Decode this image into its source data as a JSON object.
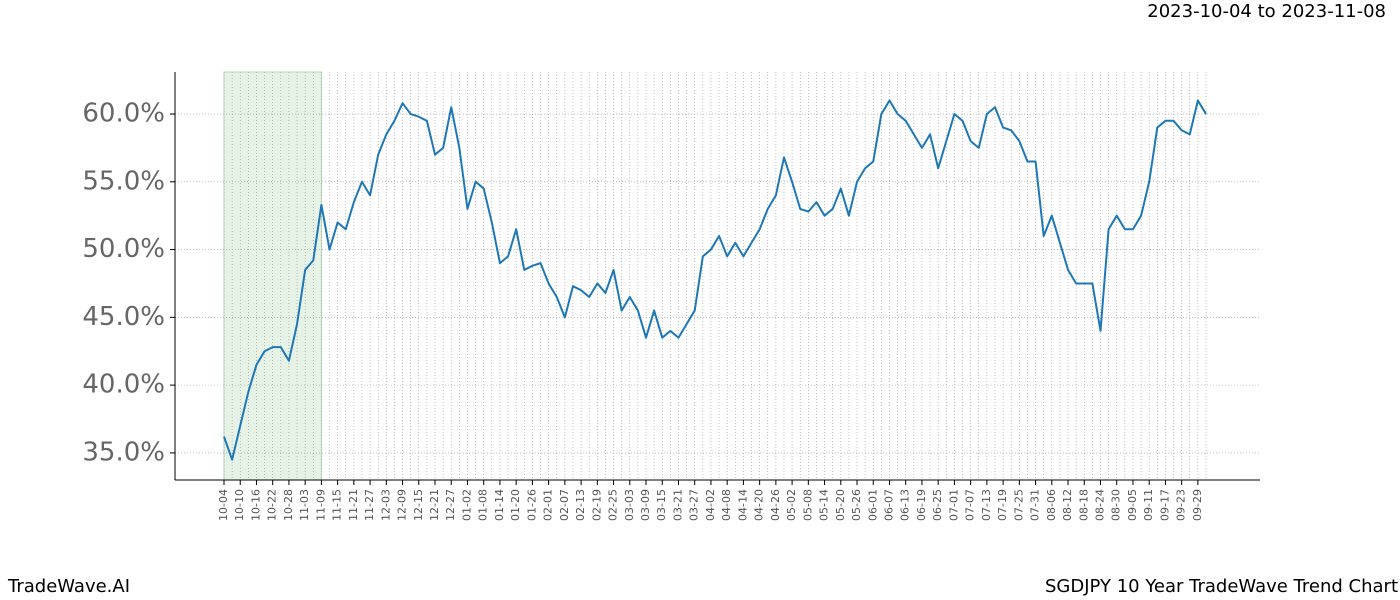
{
  "chart_data": {
    "type": "line",
    "subtitle": "2023-10-04 to 2023-11-08",
    "footer_left": "TradeWave.AI",
    "footer_right": "SGDJPY 10 Year TradeWave Trend Chart",
    "categories": [
      "10-04",
      null,
      "10-10",
      null,
      "10-16",
      null,
      "10-22",
      null,
      "10-28",
      null,
      "11-03",
      null,
      "11-09",
      null,
      "11-15",
      null,
      "11-21",
      null,
      "11-27",
      null,
      "12-03",
      null,
      "12-09",
      null,
      "12-15",
      null,
      "12-21",
      null,
      "12-27",
      null,
      "01-02",
      null,
      "01-08",
      null,
      "01-14",
      null,
      "01-20",
      null,
      "01-26",
      null,
      "02-01",
      null,
      "02-07",
      null,
      "02-13",
      null,
      "02-19",
      null,
      "02-25",
      null,
      "03-03",
      null,
      "03-09",
      null,
      "03-15",
      null,
      "03-21",
      null,
      "03-27",
      null,
      "04-02",
      null,
      "04-08",
      null,
      "04-14",
      null,
      "04-20",
      null,
      "04-26",
      null,
      "05-02",
      null,
      "05-08",
      null,
      "05-14",
      null,
      "05-20",
      null,
      "05-26",
      null,
      "06-01",
      null,
      "06-07",
      null,
      "06-13",
      null,
      "06-19",
      null,
      "06-25",
      null,
      "07-01",
      null,
      "07-07",
      null,
      "07-13",
      null,
      "07-19",
      null,
      "07-25",
      null,
      "07-31",
      null,
      "08-06",
      null,
      "08-12",
      null,
      "08-18",
      null,
      "08-24",
      null,
      "08-30",
      null,
      "09-05",
      null,
      "09-11",
      null,
      "09-17",
      null,
      "09-23",
      null,
      "09-29",
      null
    ],
    "series": [
      {
        "color": "#1f77b4",
        "values": [
          36.2,
          34.5,
          37.0,
          39.5,
          41.5,
          42.5,
          42.8,
          42.8,
          41.8,
          44.5,
          48.5,
          49.2,
          53.3,
          50.0,
          52.0,
          51.5,
          53.5,
          55.0,
          54.0,
          57.0,
          58.5,
          59.5,
          60.8,
          60.0,
          59.8,
          59.5,
          57.0,
          57.5,
          60.5,
          57.5,
          53.0,
          55.0,
          54.5,
          52.0,
          49.0,
          49.5,
          51.5,
          48.5,
          48.8,
          49.0,
          47.5,
          46.5,
          45.0,
          47.3,
          47.0,
          46.5,
          47.5,
          46.8,
          48.5,
          45.5,
          46.5,
          45.5,
          43.5,
          45.5,
          43.5,
          44.0,
          43.5,
          44.5,
          45.5,
          49.5,
          50.0,
          51.0,
          49.5,
          50.5,
          49.5,
          50.5,
          51.5,
          53.0,
          54.0,
          56.8,
          55.0,
          53.0,
          52.8,
          53.5,
          52.5,
          53.0,
          54.5,
          52.5,
          55.0,
          56.0,
          56.5,
          60.0,
          61.0,
          60.0,
          59.5,
          58.5,
          57.5,
          58.5,
          56.0,
          58.0,
          60.0,
          59.5,
          58.0,
          57.5,
          60.0,
          60.5,
          59.0,
          58.8,
          58.0,
          56.5,
          56.5,
          51.0,
          52.5,
          50.5,
          48.5,
          47.5,
          47.5,
          47.5,
          44.0,
          51.5,
          52.5,
          51.5,
          51.5,
          52.5,
          55.0,
          59.0,
          59.5,
          59.5,
          58.8,
          58.5,
          61.0,
          60.0
        ]
      }
    ],
    "shaded_range": [
      "10-04",
      "11-09"
    ],
    "shade_color": "#e6f2e6",
    "ylim": [
      33.0,
      63.1
    ],
    "yticks": [
      {
        "value": 35,
        "label": "35.0%"
      },
      {
        "value": 40,
        "label": "40.0%"
      },
      {
        "value": 45,
        "label": "45.0%"
      },
      {
        "value": 50,
        "label": "50.0%"
      },
      {
        "value": 55,
        "label": "55.0%"
      },
      {
        "value": 60,
        "label": "60.0%"
      }
    ],
    "grid": true
  }
}
